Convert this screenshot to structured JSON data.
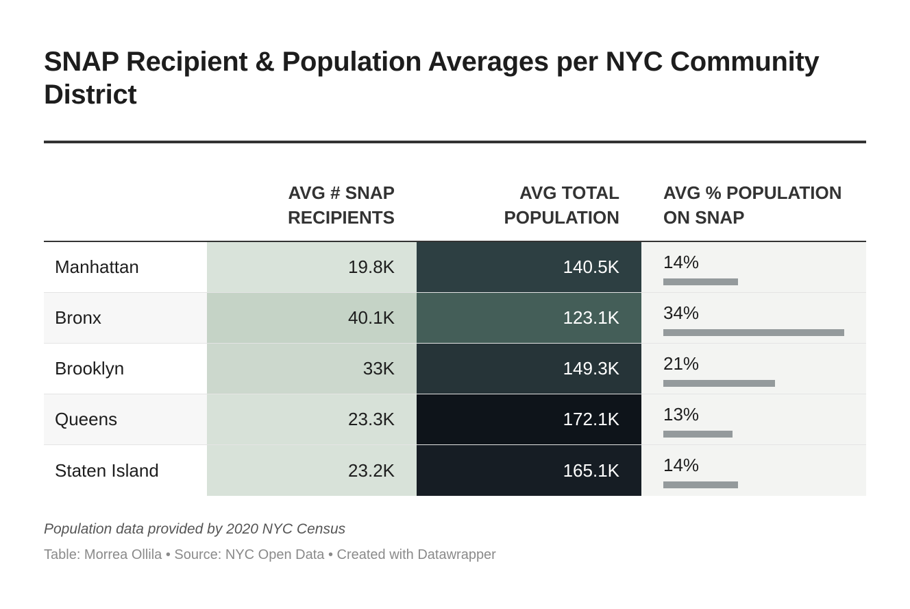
{
  "chart_data": {
    "type": "table",
    "title": "SNAP Recipient & Population Averages per NYC Community District",
    "columns": [
      "",
      "AVG # SNAP RECIPIENTS",
      "AVG TOTAL POPULATION",
      "AVG % POPULATION ON SNAP"
    ],
    "rows": [
      {
        "name": "Manhattan",
        "snap": "19.8K",
        "pop": "140.5K",
        "pct": "14%",
        "pct_value": 14,
        "snap_color": "#d9e3da",
        "pop_color": "#2d3f42",
        "row_bg": "#ffffff"
      },
      {
        "name": "Bronx",
        "snap": "40.1K",
        "pop": "123.1K",
        "pct": "34%",
        "pct_value": 34,
        "snap_color": "#c5d3c6",
        "pop_color": "#445e58",
        "row_bg": "#f7f7f7"
      },
      {
        "name": "Brooklyn",
        "snap": "33K",
        "pop": "149.3K",
        "pct": "21%",
        "pct_value": 21,
        "snap_color": "#ccd8cd",
        "pop_color": "#263438",
        "row_bg": "#ffffff"
      },
      {
        "name": "Queens",
        "snap": "23.3K",
        "pop": "172.1K",
        "pct": "13%",
        "pct_value": 13,
        "snap_color": "#d7e1d8",
        "pop_color": "#0e141a",
        "row_bg": "#f7f7f7"
      },
      {
        "name": "Staten Island",
        "snap": "23.2K",
        "pop": "165.1K",
        "pct": "14%",
        "pct_value": 14,
        "snap_color": "#d8e2d9",
        "pop_color": "#161d24",
        "row_bg": "#ffffff"
      }
    ],
    "bar_max_pct": 34,
    "bar_color": "#949a9c"
  },
  "notes": "Population data provided by 2020 NYC Census",
  "byline": "Table: Morrea Ollila • Source: NYC Open Data • Created with Datawrapper"
}
